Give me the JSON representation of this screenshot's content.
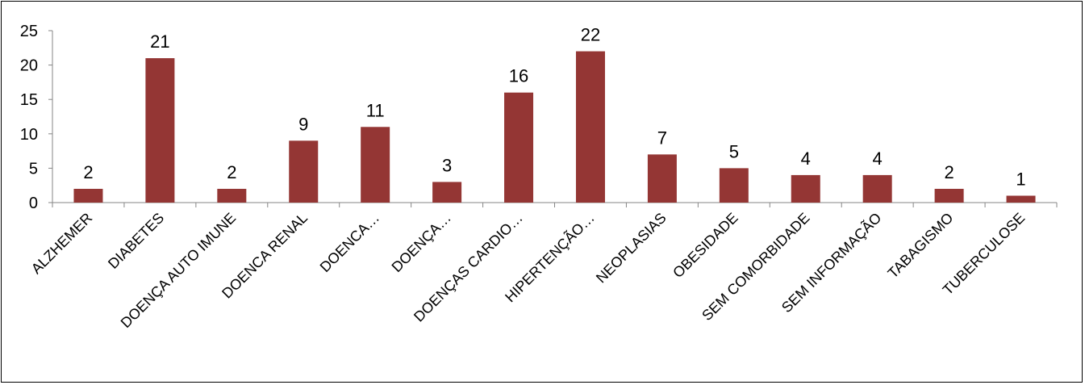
{
  "chart_data": {
    "type": "bar",
    "title": "",
    "xlabel": "",
    "ylabel": "",
    "ylim": [
      0,
      25
    ],
    "yticks": [
      0,
      5,
      10,
      15,
      20,
      25
    ],
    "grid": false,
    "legend": "none",
    "bar_color": "#943634",
    "categories": [
      "ALZHEMER",
      "DIABETES",
      "DOENÇA AUTO IMUNE",
      "DOENCA RENAL",
      "DOENCA…",
      "DOENÇA…",
      "DOENÇAS CARDIO…",
      "HIPERTENÇÃO…",
      "NEOPLASIAS",
      "OBESIDADE",
      "SEM COMORBIDADE",
      "SEM INFORMAÇÃO",
      "TABAGISMO",
      "TUBERCULOSE"
    ],
    "values": [
      2,
      21,
      2,
      9,
      11,
      3,
      16,
      22,
      7,
      5,
      4,
      4,
      2,
      1
    ],
    "data_labels": [
      "2",
      "21",
      "2",
      "9",
      "11",
      "3",
      "16",
      "22",
      "7",
      "5",
      "4",
      "4",
      "2",
      "1"
    ]
  }
}
